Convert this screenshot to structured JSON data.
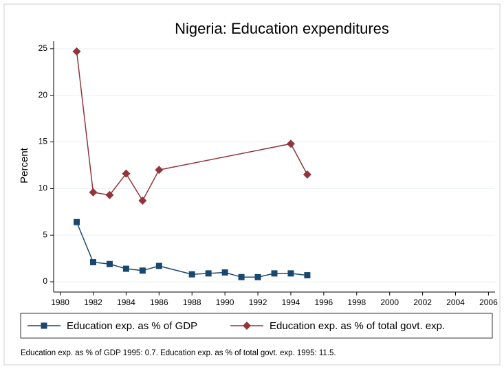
{
  "chart_data": {
    "type": "line",
    "title": "Nigeria: Education expenditures",
    "ylabel": "Percent",
    "note": "Education exp. as % of GDP 1995: 0.7. Education exp. as % of total govt. exp. 1995: 11.5.",
    "series": [
      {
        "name": "Education exp. as % of GDP",
        "color": "#1a476f",
        "marker": "square",
        "x": [
          1981,
          1982,
          1983,
          1984,
          1985,
          1986,
          1988,
          1989,
          1990,
          1991,
          1992,
          1993,
          1994,
          1995
        ],
        "values": [
          6.4,
          2.1,
          1.9,
          1.4,
          1.2,
          1.7,
          0.8,
          0.9,
          1.0,
          0.5,
          0.5,
          0.9,
          0.9,
          0.7
        ]
      },
      {
        "name": "Education exp. as % of total govt. exp.",
        "color": "#90353b",
        "marker": "diamond",
        "x": [
          1981,
          1982,
          1983,
          1984,
          1985,
          1986,
          1994,
          1995
        ],
        "values": [
          24.7,
          9.6,
          9.3,
          11.6,
          8.7,
          12.0,
          14.8,
          11.5
        ]
      }
    ],
    "xlim": [
      1979.6,
      2006.4
    ],
    "xticks": [
      1980,
      1982,
      1984,
      1986,
      1988,
      1990,
      1992,
      1994,
      1996,
      1998,
      2000,
      2002,
      2004,
      2006
    ],
    "ylim": [
      -1.1,
      25.8
    ],
    "yticks": [
      0,
      5,
      10,
      15,
      20,
      25
    ],
    "grid": true
  }
}
